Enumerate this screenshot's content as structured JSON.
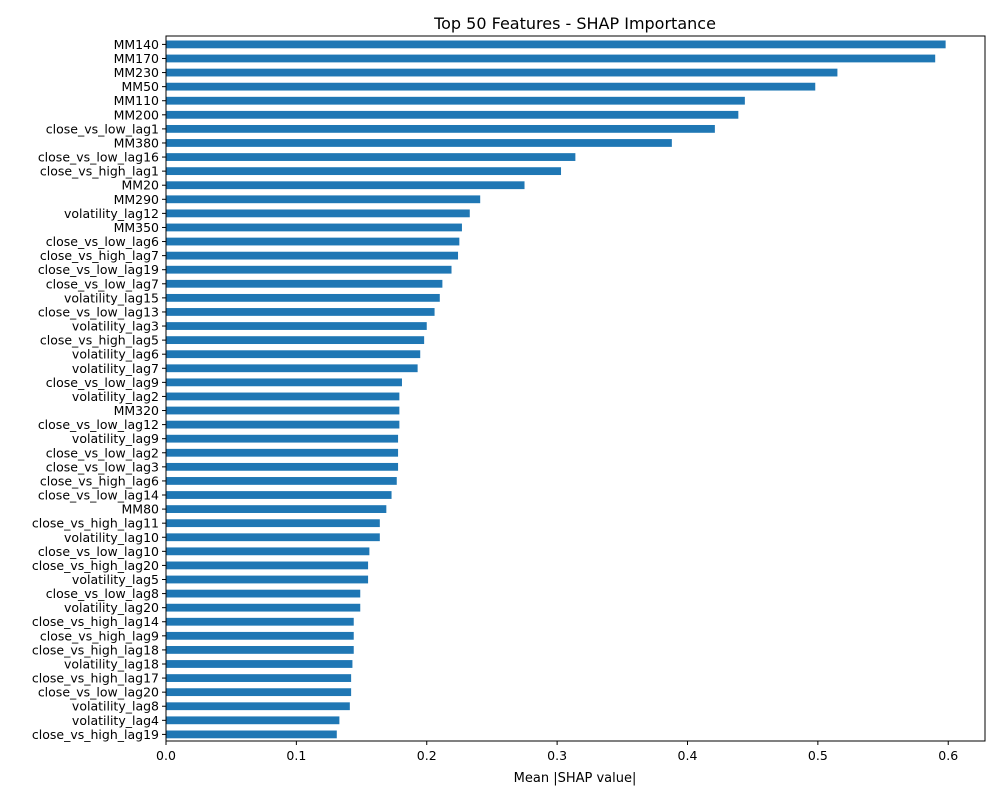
{
  "chart_data": {
    "type": "bar",
    "orientation": "horizontal",
    "title": "Top 50 Features - SHAP Importance",
    "xlabel": "Mean |SHAP value|",
    "ylabel": "",
    "xlim": [
      0,
      0.6282
    ],
    "xticks": [
      "0.0",
      "0.1",
      "0.2",
      "0.3",
      "0.4",
      "0.5",
      "0.6"
    ],
    "grid": false,
    "legend": "none",
    "bar_color": "#1f77b4",
    "categories": [
      "MM140",
      "MM170",
      "MM230",
      "MM50",
      "MM110",
      "MM200",
      "close_vs_low_lag1",
      "MM380",
      "close_vs_low_lag16",
      "close_vs_high_lag1",
      "MM20",
      "MM290",
      "volatility_lag12",
      "MM350",
      "close_vs_low_lag6",
      "close_vs_high_lag7",
      "close_vs_low_lag19",
      "close_vs_low_lag7",
      "volatility_lag15",
      "close_vs_low_lag13",
      "volatility_lag3",
      "close_vs_high_lag5",
      "volatility_lag6",
      "volatility_lag7",
      "close_vs_low_lag9",
      "volatility_lag2",
      "MM320",
      "close_vs_low_lag12",
      "volatility_lag9",
      "close_vs_low_lag2",
      "close_vs_low_lag3",
      "close_vs_high_lag6",
      "close_vs_low_lag14",
      "MM80",
      "close_vs_high_lag11",
      "volatility_lag10",
      "close_vs_low_lag10",
      "close_vs_high_lag20",
      "volatility_lag5",
      "close_vs_low_lag8",
      "volatility_lag20",
      "close_vs_high_lag14",
      "close_vs_high_lag9",
      "close_vs_high_lag18",
      "volatility_lag18",
      "close_vs_high_lag17",
      "close_vs_low_lag20",
      "volatility_lag8",
      "volatility_lag4",
      "close_vs_high_lag19"
    ],
    "values": [
      0.598,
      0.59,
      0.515,
      0.498,
      0.444,
      0.439,
      0.421,
      0.388,
      0.314,
      0.303,
      0.275,
      0.241,
      0.233,
      0.227,
      0.225,
      0.224,
      0.219,
      0.212,
      0.21,
      0.206,
      0.2,
      0.198,
      0.195,
      0.193,
      0.181,
      0.179,
      0.179,
      0.179,
      0.178,
      0.178,
      0.178,
      0.177,
      0.173,
      0.169,
      0.164,
      0.164,
      0.156,
      0.155,
      0.155,
      0.149,
      0.149,
      0.144,
      0.144,
      0.144,
      0.143,
      0.142,
      0.142,
      0.141,
      0.133,
      0.131
    ]
  }
}
